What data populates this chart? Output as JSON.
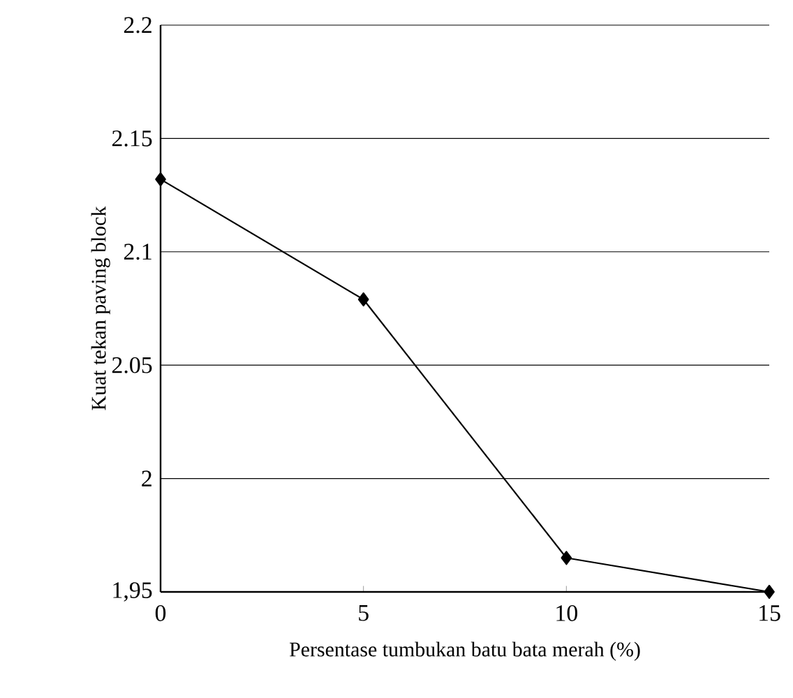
{
  "chart_data": {
    "type": "line",
    "xlabel": "Persentase tumbukan batu bata merah (%)",
    "ylabel": "Kuat tekan paving block",
    "x": [
      0,
      5,
      10,
      15
    ],
    "series": [
      {
        "color": "#000000",
        "values": [
          2.132,
          2.079,
          1.965,
          1.95
        ]
      }
    ],
    "xlim": [
      0,
      15
    ],
    "xticks": [
      0,
      5,
      10,
      15
    ],
    "ylim": [
      1.95,
      2.2
    ],
    "yticks": [
      {
        "value": 1.95,
        "label": "1,95"
      },
      2,
      2.05,
      2.1,
      2.15,
      2.2
    ],
    "grid": "y",
    "marker": "diamond",
    "line_style": "solid"
  }
}
